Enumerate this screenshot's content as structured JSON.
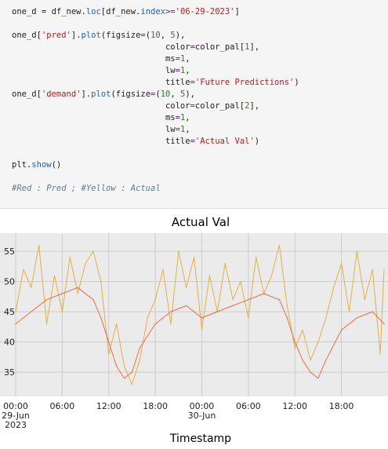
{
  "code_cell": {
    "lines": [
      [
        {
          "t": "one_d = df_new."
        },
        {
          "t": "loc",
          "c": "attr"
        },
        {
          "t": "[df_new."
        },
        {
          "t": "index",
          "c": "attr"
        },
        {
          "t": ">=",
          "c": "op"
        },
        {
          "t": "'06-29-2023'",
          "c": "str"
        },
        {
          "t": "]"
        }
      ],
      [],
      [
        {
          "t": "one_d["
        },
        {
          "t": "'pred'",
          "c": "str"
        },
        {
          "t": "]."
        },
        {
          "t": "plot",
          "c": "attr"
        },
        {
          "t": "(figsize"
        },
        {
          "t": "=",
          "c": "op"
        },
        {
          "t": "("
        },
        {
          "t": "10",
          "c": "num"
        },
        {
          "t": ", "
        },
        {
          "t": "5",
          "c": "num"
        },
        {
          "t": "),"
        }
      ],
      [
        {
          "t": "                               color"
        },
        {
          "t": "=",
          "c": "op"
        },
        {
          "t": "color_pal["
        },
        {
          "t": "1",
          "c": "num"
        },
        {
          "t": "],"
        }
      ],
      [
        {
          "t": "                               ms"
        },
        {
          "t": "=",
          "c": "op"
        },
        {
          "t": "1",
          "c": "num"
        },
        {
          "t": ","
        }
      ],
      [
        {
          "t": "                               lw"
        },
        {
          "t": "=",
          "c": "op"
        },
        {
          "t": "1",
          "c": "num"
        },
        {
          "t": ","
        }
      ],
      [
        {
          "t": "                               title"
        },
        {
          "t": "=",
          "c": "op"
        },
        {
          "t": "'Future Predictions'",
          "c": "str"
        },
        {
          "t": ")"
        }
      ],
      [
        {
          "t": "one_d["
        },
        {
          "t": "'demand'",
          "c": "str"
        },
        {
          "t": "]."
        },
        {
          "t": "plot",
          "c": "attr"
        },
        {
          "t": "(figsize"
        },
        {
          "t": "=",
          "c": "op"
        },
        {
          "t": "("
        },
        {
          "t": "10",
          "c": "num"
        },
        {
          "t": ", "
        },
        {
          "t": "5",
          "c": "num"
        },
        {
          "t": "),"
        }
      ],
      [
        {
          "t": "                               color"
        },
        {
          "t": "=",
          "c": "op"
        },
        {
          "t": "color_pal["
        },
        {
          "t": "2",
          "c": "num"
        },
        {
          "t": "],"
        }
      ],
      [
        {
          "t": "                               ms"
        },
        {
          "t": "=",
          "c": "op"
        },
        {
          "t": "1",
          "c": "num"
        },
        {
          "t": ","
        }
      ],
      [
        {
          "t": "                               lw"
        },
        {
          "t": "=",
          "c": "op"
        },
        {
          "t": "1",
          "c": "num"
        },
        {
          "t": ","
        }
      ],
      [
        {
          "t": "                               title"
        },
        {
          "t": "=",
          "c": "op"
        },
        {
          "t": "'Actual Val'",
          "c": "str"
        },
        {
          "t": ")"
        }
      ],
      [],
      [
        {
          "t": "plt."
        },
        {
          "t": "show",
          "c": "attr"
        },
        {
          "t": "()"
        }
      ],
      [],
      [
        {
          "t": "#Red : Pred ; #Yellow : Actual",
          "c": "com"
        }
      ]
    ]
  },
  "chart_data": {
    "type": "line",
    "title": "Actual Val",
    "xlabel": "Timestamp",
    "ylabel": "",
    "ylim": [
      31,
      58
    ],
    "xlim": [
      "2023-06-29 00:00",
      "2023-06-30 23:30"
    ],
    "yticks": [
      35,
      40,
      45,
      50,
      55
    ],
    "xticks": [
      {
        "value": "2023-06-29 00:00",
        "label": [
          "00:00",
          "29-Jun",
          "2023"
        ]
      },
      {
        "value": "2023-06-29 06:00",
        "label": [
          "06:00"
        ]
      },
      {
        "value": "2023-06-29 12:00",
        "label": [
          "12:00"
        ]
      },
      {
        "value": "2023-06-29 18:00",
        "label": [
          "18:00"
        ]
      },
      {
        "value": "2023-06-30 00:00",
        "label": [
          "00:00",
          "30-Jun"
        ]
      },
      {
        "value": "2023-06-30 06:00",
        "label": [
          "06:00"
        ]
      },
      {
        "value": "2023-06-30 12:00",
        "label": [
          "12:00"
        ]
      },
      {
        "value": "2023-06-30 18:00",
        "label": [
          "18:00"
        ]
      }
    ],
    "grid": true,
    "colors": {
      "pred": "#f06a44",
      "demand": "#e3b041",
      "background": "#ebebeb",
      "grid": "#cccccc"
    },
    "series": [
      {
        "key": "pred",
        "x": [
          "2023-06-29 00:00",
          "2023-06-29 02:00",
          "2023-06-29 04:00",
          "2023-06-29 06:00",
          "2023-06-29 08:00",
          "2023-06-29 10:00",
          "2023-06-29 11:00",
          "2023-06-29 12:00",
          "2023-06-29 13:00",
          "2023-06-29 14:00",
          "2023-06-29 15:00",
          "2023-06-29 16:00",
          "2023-06-29 18:00",
          "2023-06-29 20:00",
          "2023-06-29 22:00",
          "2023-06-30 00:00",
          "2023-06-30 02:00",
          "2023-06-30 04:00",
          "2023-06-30 06:00",
          "2023-06-30 08:00",
          "2023-06-30 10:00",
          "2023-06-30 11:00",
          "2023-06-30 12:00",
          "2023-06-30 13:00",
          "2023-06-30 14:00",
          "2023-06-30 15:00",
          "2023-06-30 16:00",
          "2023-06-30 18:00",
          "2023-06-30 20:00",
          "2023-06-30 22:00",
          "2023-06-30 23:30"
        ],
        "y": [
          43,
          45,
          47,
          48,
          49,
          47,
          44,
          40,
          36,
          34,
          35,
          39,
          43,
          45,
          46,
          44,
          45,
          46,
          47,
          48,
          47,
          44,
          40,
          37,
          35,
          34,
          37,
          42,
          44,
          45,
          43
        ]
      },
      {
        "key": "demand",
        "x": [
          "2023-06-29 00:00",
          "2023-06-29 01:00",
          "2023-06-29 02:00",
          "2023-06-29 03:00",
          "2023-06-29 04:00",
          "2023-06-29 05:00",
          "2023-06-29 06:00",
          "2023-06-29 07:00",
          "2023-06-29 08:00",
          "2023-06-29 09:00",
          "2023-06-29 10:00",
          "2023-06-29 11:00",
          "2023-06-29 12:00",
          "2023-06-29 13:00",
          "2023-06-29 14:00",
          "2023-06-29 15:00",
          "2023-06-29 16:00",
          "2023-06-29 17:00",
          "2023-06-29 18:00",
          "2023-06-29 19:00",
          "2023-06-29 20:00",
          "2023-06-29 21:00",
          "2023-06-29 22:00",
          "2023-06-29 23:00",
          "2023-06-30 00:00",
          "2023-06-30 01:00",
          "2023-06-30 02:00",
          "2023-06-30 03:00",
          "2023-06-30 04:00",
          "2023-06-30 05:00",
          "2023-06-30 06:00",
          "2023-06-30 07:00",
          "2023-06-30 08:00",
          "2023-06-30 09:00",
          "2023-06-30 10:00",
          "2023-06-30 11:00",
          "2023-06-30 12:00",
          "2023-06-30 13:00",
          "2023-06-30 14:00",
          "2023-06-30 15:00",
          "2023-06-30 16:00",
          "2023-06-30 17:00",
          "2023-06-30 18:00",
          "2023-06-30 19:00",
          "2023-06-30 20:00",
          "2023-06-30 21:00",
          "2023-06-30 22:00",
          "2023-06-30 23:00",
          "2023-06-30 23:30"
        ],
        "y": [
          45,
          52,
          49,
          56,
          43,
          51,
          45,
          54,
          48,
          53,
          55,
          50,
          38,
          43,
          36,
          33,
          37,
          44,
          47,
          52,
          43,
          55,
          49,
          54,
          42,
          51,
          45,
          53,
          47,
          50,
          44,
          54,
          48,
          51,
          56,
          46,
          39,
          42,
          37,
          40,
          44,
          49,
          53,
          45,
          55,
          47,
          52,
          38,
          52
        ]
      }
    ]
  }
}
